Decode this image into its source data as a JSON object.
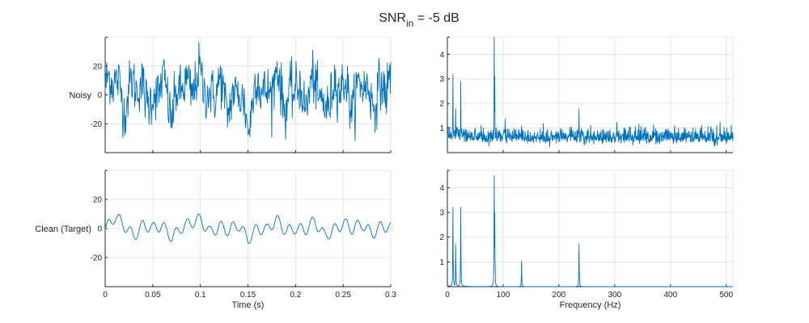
{
  "figure": {
    "title_main": "SNR",
    "title_sub": "in",
    "title_tail": " = -5 dB",
    "line_color": "#0072bd",
    "grid_color": "#dfdfdf",
    "axis_color": "#262626"
  },
  "chart_data": [
    {
      "type": "line",
      "name": "noisy-time",
      "ylabel": "Noisy",
      "xlabel": "",
      "xlim": [
        0,
        0.3
      ],
      "ylim": [
        -40,
        40
      ],
      "xticks": [
        0,
        0.05,
        0.1,
        0.15,
        0.2,
        0.25,
        0.3
      ],
      "yticks": [
        -20,
        0,
        20
      ],
      "xtick_labels": [],
      "ytick_labels": [
        "-20",
        "0",
        "20"
      ],
      "grid": true,
      "signal": {
        "description": "time-domain noisy waveform",
        "x": [
          0,
          0.01,
          0.02,
          0.03,
          0.04,
          0.05,
          0.06,
          0.07,
          0.08,
          0.09,
          0.1,
          0.11,
          0.12,
          0.13,
          0.14,
          0.15,
          0.16,
          0.17,
          0.18,
          0.19,
          0.2,
          0.21,
          0.22,
          0.23,
          0.24,
          0.25,
          0.26,
          0.27,
          0.28,
          0.29,
          0.3
        ],
        "y": [
          5,
          14,
          -8,
          10,
          2,
          -6,
          12,
          -14,
          8,
          3,
          14,
          -4,
          9,
          -10,
          6,
          -22,
          12,
          -3,
          16,
          -9,
          8,
          -6,
          11,
          -12,
          5,
          9,
          -8,
          12,
          -5,
          4,
          10
        ]
      }
    },
    {
      "type": "line",
      "name": "noisy-spectrum",
      "ylabel": "",
      "xlabel": "",
      "xlim": [
        0,
        512
      ],
      "ylim": [
        0,
        4.7
      ],
      "xticks": [
        0,
        100,
        200,
        300,
        400,
        500
      ],
      "yticks": [
        1,
        2,
        3,
        4
      ],
      "xtick_labels": [],
      "ytick_labels": [
        "1",
        "2",
        "3",
        "4"
      ],
      "grid": true,
      "peaks": [
        {
          "f": 10,
          "a": 3.2
        },
        {
          "f": 15,
          "a": 1.8
        },
        {
          "f": 24,
          "a": 2.9
        },
        {
          "f": 84,
          "a": 4.7
        },
        {
          "f": 85,
          "a": 3.1
        },
        {
          "f": 133,
          "a": 1.1
        },
        {
          "f": 236,
          "a": 1.8
        }
      ],
      "noise_floor": 0.45
    },
    {
      "type": "line",
      "name": "clean-time",
      "ylabel": "Clean (Target)",
      "xlabel": "Time (s)",
      "xlim": [
        0,
        0.3
      ],
      "ylim": [
        -40,
        40
      ],
      "xticks": [
        0,
        0.05,
        0.1,
        0.15,
        0.2,
        0.25,
        0.3
      ],
      "yticks": [
        -20,
        0,
        20
      ],
      "xtick_labels": [
        "0",
        "0.05",
        "0.1",
        "0.15",
        "0.2",
        "0.25",
        "0.3"
      ],
      "ytick_labels": [
        "-20",
        "0",
        "20"
      ],
      "grid": true,
      "signal": {
        "description": "time-domain clean waveform",
        "x": [
          0,
          0.01,
          0.02,
          0.03,
          0.04,
          0.05,
          0.06,
          0.07,
          0.08,
          0.09,
          0.1,
          0.11,
          0.12,
          0.13,
          0.14,
          0.15,
          0.16,
          0.17,
          0.18,
          0.19,
          0.2,
          0.21,
          0.22,
          0.23,
          0.24,
          0.25,
          0.26,
          0.27,
          0.28,
          0.29,
          0.3
        ],
        "y": [
          -2,
          12,
          4,
          -6,
          6,
          -4,
          2,
          -8,
          3,
          4,
          10,
          -2,
          6,
          -6,
          2,
          -12,
          4,
          -4,
          8,
          -2,
          5,
          -3,
          6,
          -9,
          2,
          7,
          -5,
          6,
          -3,
          4,
          -3
        ]
      }
    },
    {
      "type": "line",
      "name": "clean-spectrum",
      "ylabel": "",
      "xlabel": "Frequency (Hz)",
      "xlim": [
        0,
        512
      ],
      "ylim": [
        0,
        4.7
      ],
      "xticks": [
        0,
        100,
        200,
        300,
        400,
        500
      ],
      "yticks": [
        1,
        2,
        3,
        4
      ],
      "xtick_labels": [
        "0",
        "100",
        "200",
        "300",
        "400",
        "500"
      ],
      "ytick_labels": [
        "1",
        "2",
        "3",
        "4"
      ],
      "grid": true,
      "peaks": [
        {
          "f": 10,
          "a": 3.2
        },
        {
          "f": 15,
          "a": 1.7
        },
        {
          "f": 24,
          "a": 3.2
        },
        {
          "f": 84,
          "a": 4.5
        },
        {
          "f": 85,
          "a": 3.0
        },
        {
          "f": 133,
          "a": 1.05
        },
        {
          "f": 236,
          "a": 1.75
        }
      ],
      "noise_floor": 0
    }
  ]
}
